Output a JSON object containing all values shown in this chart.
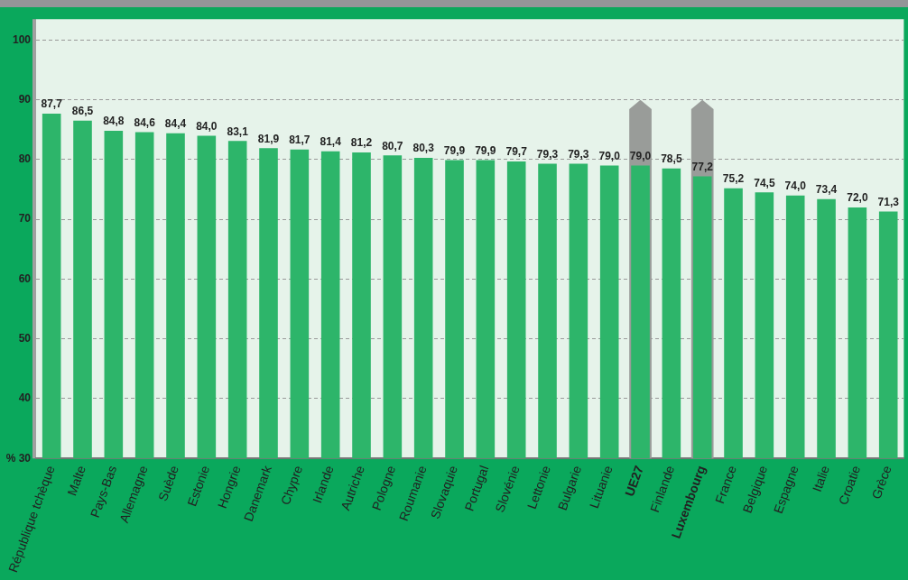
{
  "chart_data": {
    "type": "bar",
    "categories": [
      "République tchèque",
      "Malte",
      "Pays-Bas",
      "Allemagne",
      "Suède",
      "Estonie",
      "Hongrie",
      "Danemark",
      "Chypre",
      "Irlande",
      "Autriche",
      "Pologne",
      "Roumanie",
      "Slovaquie",
      "Portugal",
      "Slovénie",
      "Lettonie",
      "Bulgarie",
      "Lituanie",
      "UE27",
      "Finlande",
      "Luxembourg",
      "France",
      "Belgique",
      "Espagne",
      "Italie",
      "Croatie",
      "Grèce"
    ],
    "values": [
      87.7,
      86.5,
      84.8,
      84.6,
      84.4,
      84.0,
      83.1,
      81.9,
      81.7,
      81.4,
      81.2,
      80.7,
      80.3,
      79.9,
      79.9,
      79.7,
      79.3,
      79.3,
      79.0,
      79.0,
      78.5,
      77.2,
      75.2,
      74.5,
      74.0,
      73.4,
      72.0,
      71.3
    ],
    "value_labels": [
      "87,7",
      "86,5",
      "84,8",
      "84,6",
      "84,4",
      "84,0",
      "83,1",
      "81,9",
      "81,7",
      "81,4",
      "81,2",
      "80,7",
      "80,3",
      "79,9",
      "79,9",
      "79,7",
      "79,3",
      "79,3",
      "79,0",
      "79,0",
      "78,5",
      "77,2",
      "75,2",
      "74,5",
      "74,0",
      "73,4",
      "72,0",
      "71,3"
    ],
    "color": "#2db56a",
    "ylim": [
      30,
      103.5
    ],
    "yticks": [
      {
        "value": 30,
        "label": "% 30"
      },
      40,
      50,
      60,
      70,
      80,
      90,
      100
    ],
    "grid": "y",
    "bands": [
      {
        "axis": "x",
        "from": "UE27",
        "to": "UE27",
        "color": "#999c99"
      },
      {
        "axis": "x",
        "from": "Luxembourg",
        "to": "Luxembourg",
        "color": "#999c99"
      }
    ]
  }
}
